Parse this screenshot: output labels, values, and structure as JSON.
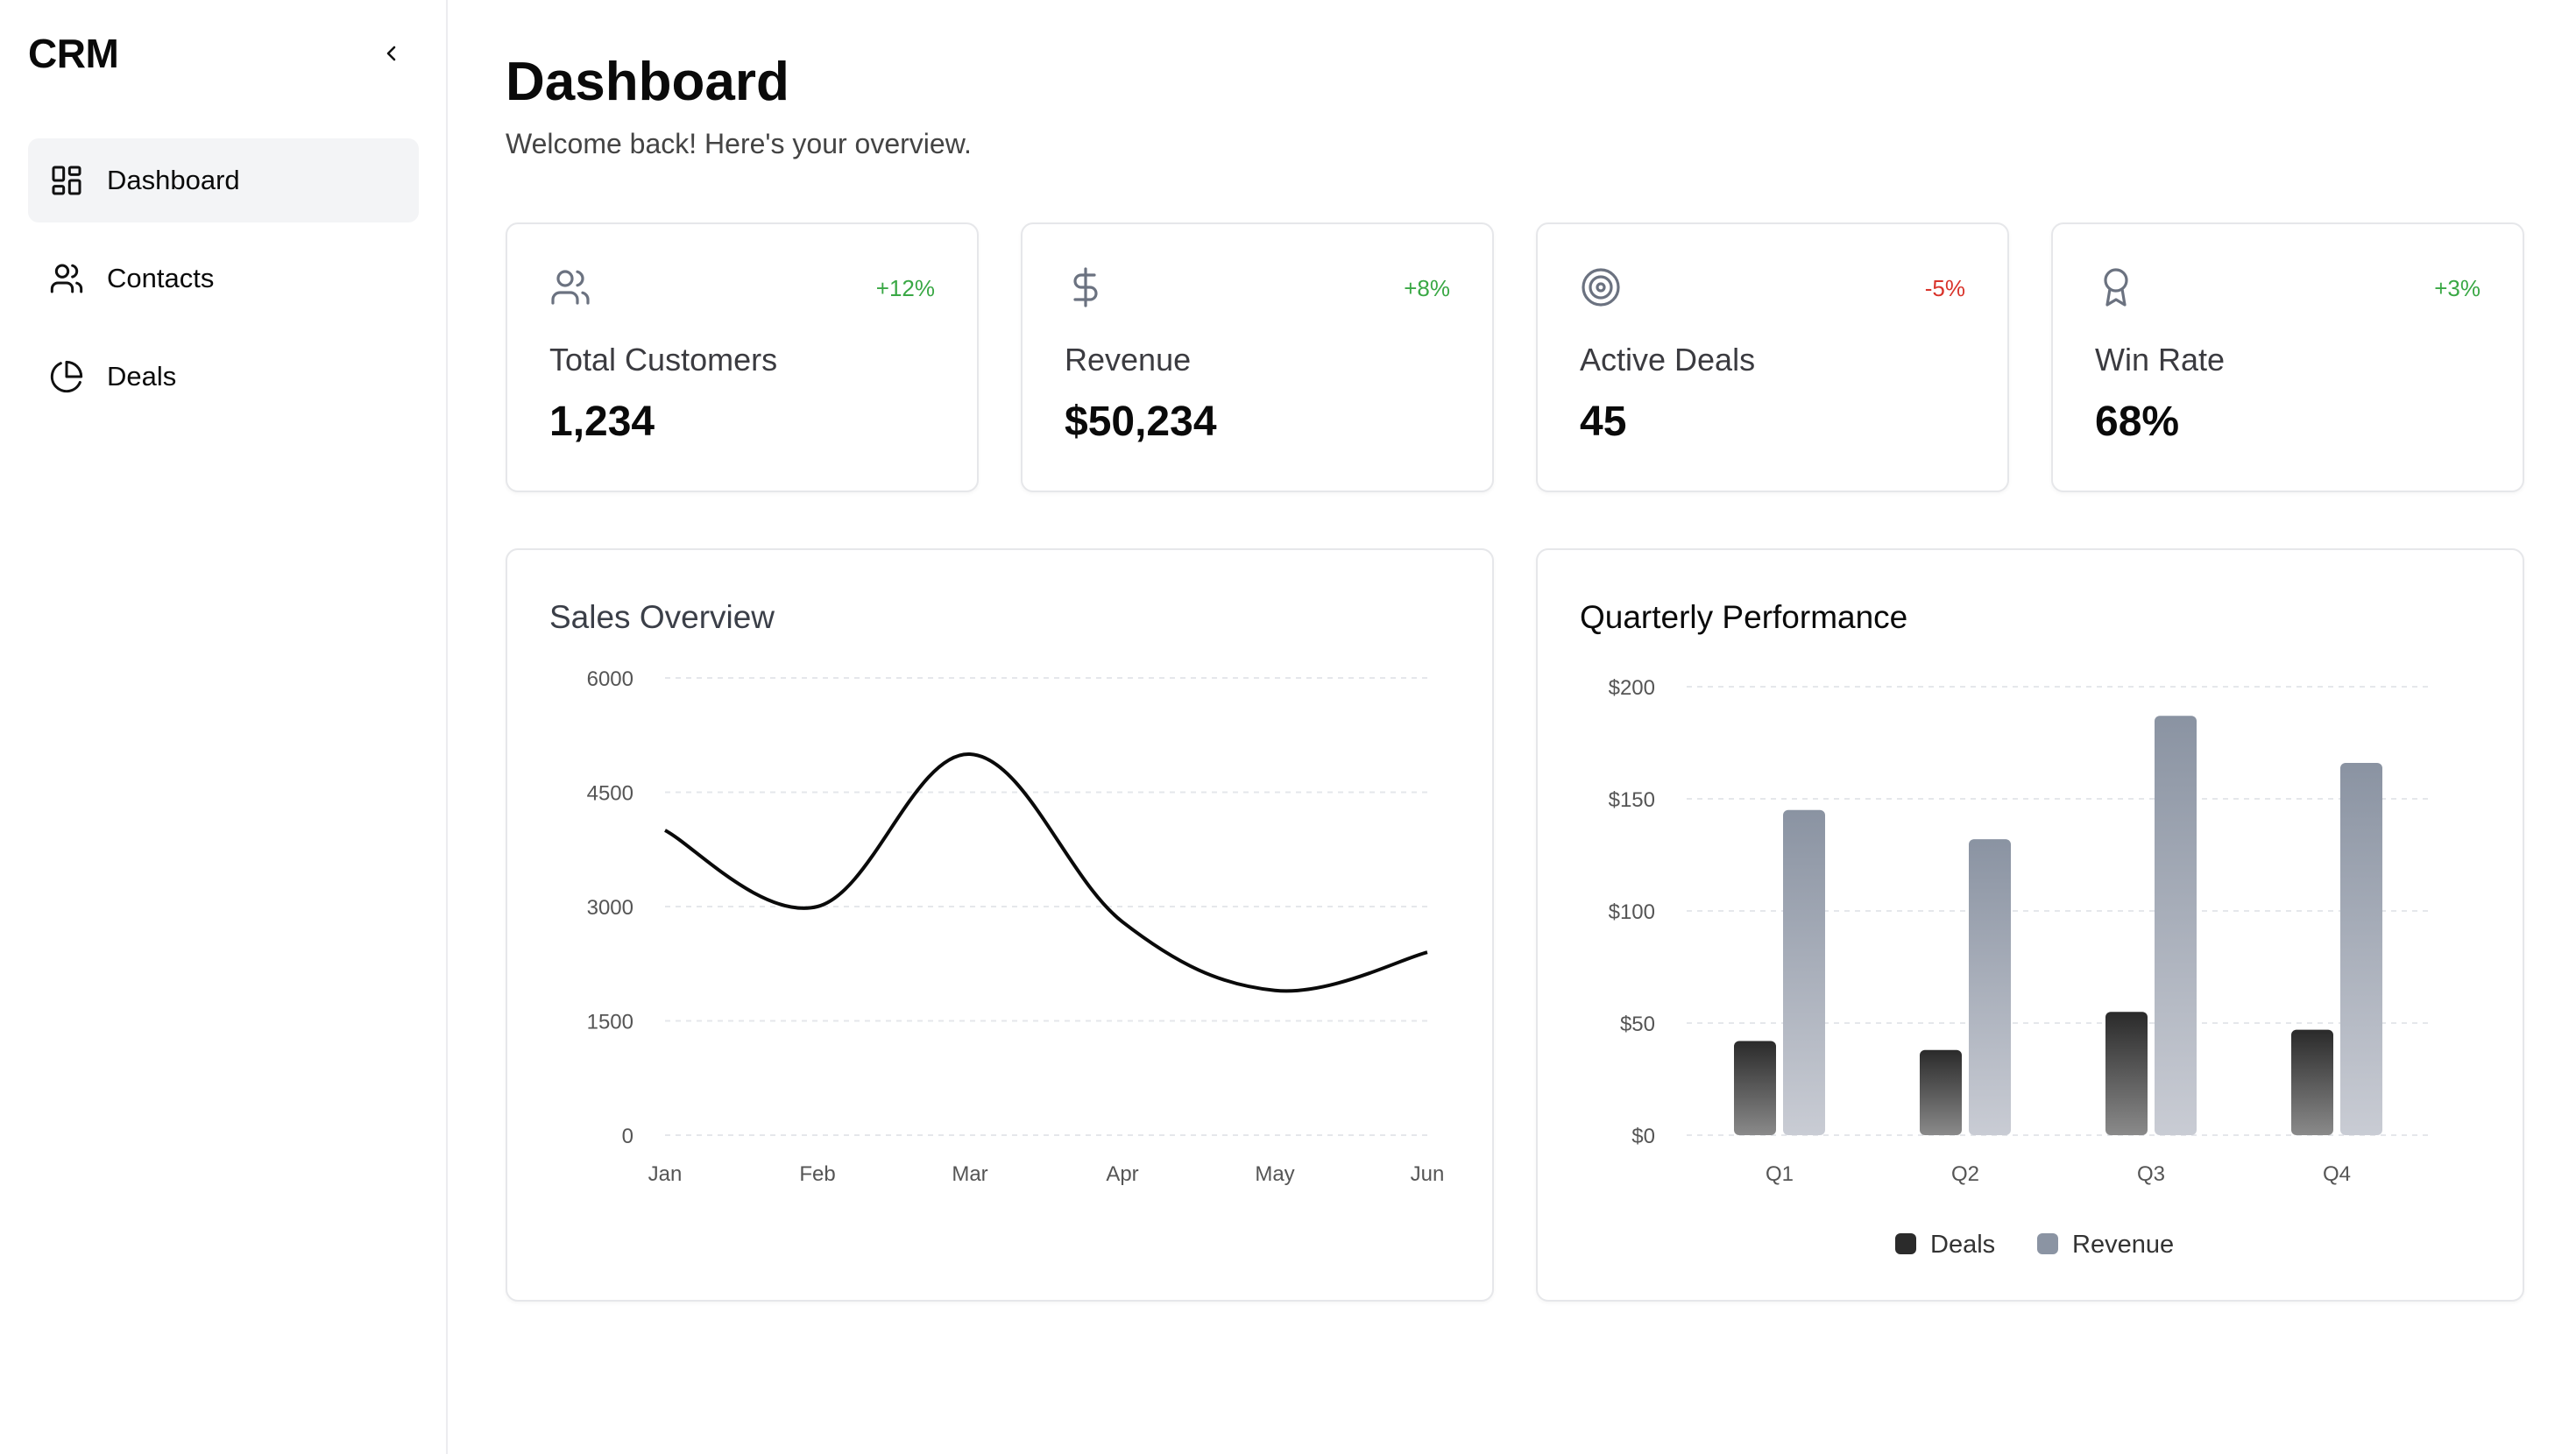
{
  "sidebar": {
    "brand": "CRM",
    "collapse_icon": "chevron-left-icon",
    "items": [
      {
        "label": "Dashboard",
        "icon": "layout-dashboard-icon",
        "active": true
      },
      {
        "label": "Contacts",
        "icon": "users-icon",
        "active": false
      },
      {
        "label": "Deals",
        "icon": "pie-chart-icon",
        "active": false
      }
    ]
  },
  "header": {
    "title": "Dashboard",
    "subtitle": "Welcome back! Here's your overview."
  },
  "stats": [
    {
      "label": "Total Customers",
      "value": "1,234",
      "change": "+12%",
      "icon": "users-icon",
      "trend": "up"
    },
    {
      "label": "Revenue",
      "value": "$50,234",
      "change": "+8%",
      "icon": "dollar-sign-icon",
      "trend": "up"
    },
    {
      "label": "Active Deals",
      "value": "45",
      "change": "-5%",
      "icon": "target-icon",
      "trend": "down"
    },
    {
      "label": "Win Rate",
      "value": "68%",
      "change": "+3%",
      "icon": "award-icon",
      "trend": "up"
    }
  ],
  "colors": {
    "positive": "#3aa845",
    "negative": "#d9342b",
    "icon": "#6b7280",
    "deals": "#2b2b2b",
    "revenue": "#8b94a3"
  },
  "chart_data": [
    {
      "type": "line",
      "title": "Sales Overview",
      "categories": [
        "Jan",
        "Feb",
        "Mar",
        "Apr",
        "May",
        "Jun"
      ],
      "values": [
        4000,
        3000,
        5000,
        2800,
        1900,
        2400
      ],
      "ylim": [
        0,
        6000
      ],
      "yticks": [
        "0",
        "1500",
        "3000",
        "4500",
        "6000"
      ],
      "grid": true
    },
    {
      "type": "bar",
      "title": "Quarterly Performance",
      "categories": [
        "Q1",
        "Q2",
        "Q3",
        "Q4"
      ],
      "series": [
        {
          "name": "Deals",
          "values": [
            42,
            38,
            55,
            47
          ]
        },
        {
          "name": "Revenue",
          "values": [
            145,
            132,
            187,
            166
          ]
        }
      ],
      "ylim": [
        0,
        200
      ],
      "yticks": [
        "$0",
        "$50",
        "$100",
        "$150",
        "$200"
      ],
      "legend": "bottom-center",
      "grid": true
    }
  ]
}
